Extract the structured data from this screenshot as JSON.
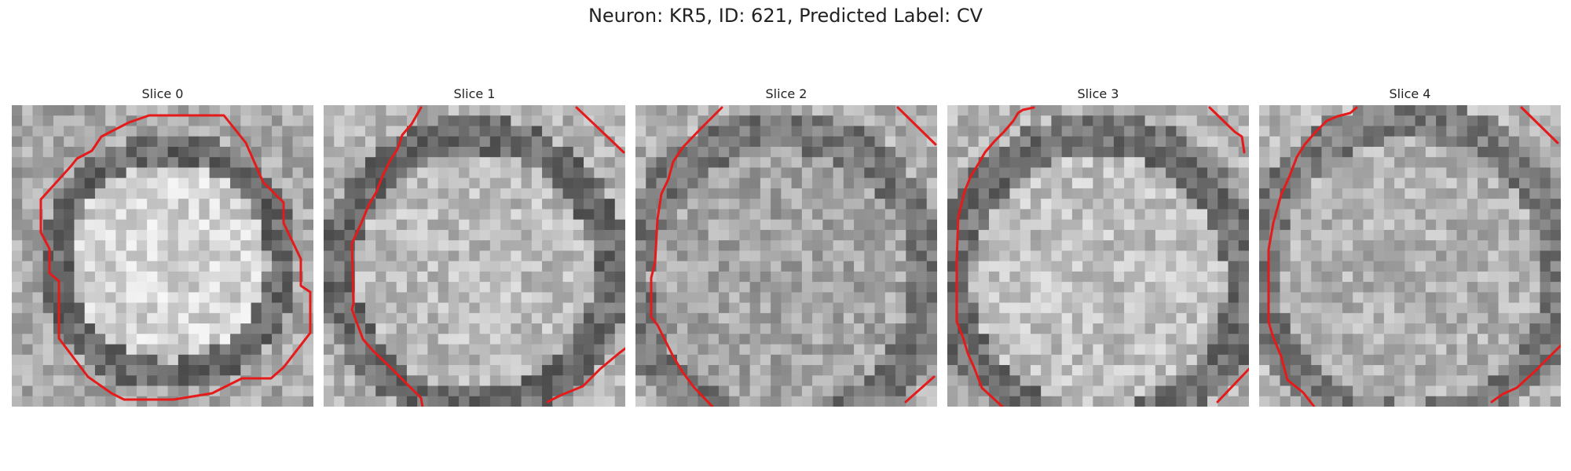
{
  "figure": {
    "title": "Neuron: KR5, ID: 621, Predicted Label: CV"
  },
  "colors": {
    "background": "#ffffff",
    "contour": "#e51a1a",
    "pixel_colormap": "grayscale"
  },
  "panels": [
    {
      "title": "Slice 0"
    },
    {
      "title": "Slice 1"
    },
    {
      "title": "Slice 2"
    },
    {
      "title": "Slice 3"
    },
    {
      "title": "Slice 4"
    }
  ]
}
